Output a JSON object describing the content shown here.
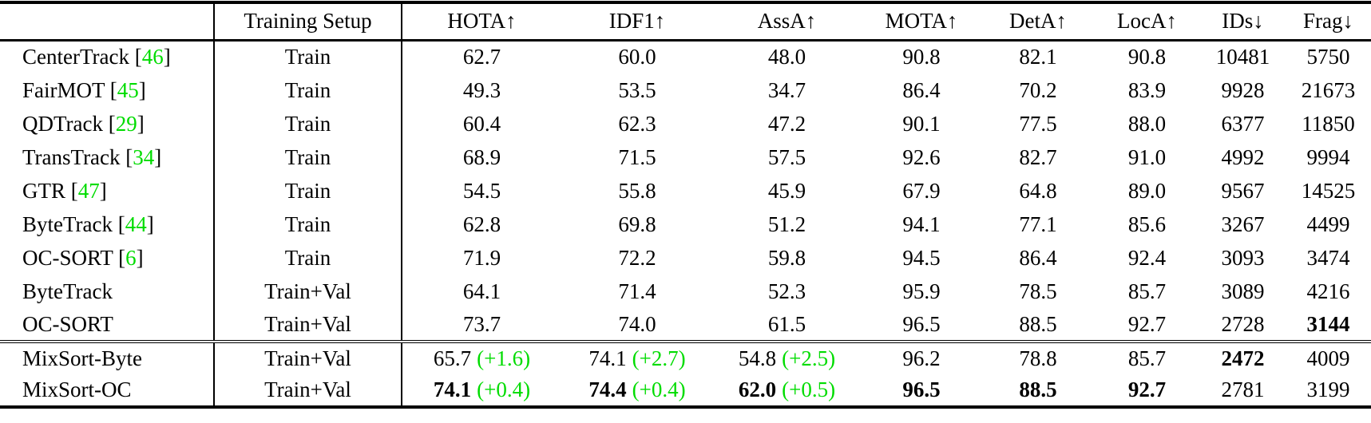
{
  "table": {
    "columns": [
      {
        "id": "method",
        "label": "",
        "arrow": ""
      },
      {
        "id": "setup",
        "label": "Training Setup",
        "arrow": ""
      },
      {
        "id": "hota",
        "label": "HOTA",
        "arrow": "↑"
      },
      {
        "id": "idf1",
        "label": "IDF1",
        "arrow": "↑"
      },
      {
        "id": "assa",
        "label": "AssA",
        "arrow": "↑"
      },
      {
        "id": "mota",
        "label": "MOTA",
        "arrow": "↑"
      },
      {
        "id": "deta",
        "label": "DetA",
        "arrow": "↑"
      },
      {
        "id": "loca",
        "label": "LocA",
        "arrow": "↑"
      },
      {
        "id": "ids",
        "label": "IDs",
        "arrow": "↓"
      },
      {
        "id": "frag",
        "label": "Frag",
        "arrow": "↓"
      }
    ],
    "colors": {
      "citation_green": "#00dc00",
      "delta_green": "#00dc00",
      "text_black": "#000000",
      "background": "#ffffff"
    },
    "sections": [
      {
        "name": "baselines",
        "rows": [
          {
            "method": "CenterTrack",
            "cite": "46",
            "setup": "Train",
            "metrics": [
              {
                "value": "62.7"
              },
              {
                "value": "60.0"
              },
              {
                "value": "48.0"
              },
              {
                "value": "90.8"
              },
              {
                "value": "82.1"
              },
              {
                "value": "90.8"
              },
              {
                "value": "10481"
              },
              {
                "value": "5750"
              }
            ]
          },
          {
            "method": "FairMOT",
            "cite": "45",
            "setup": "Train",
            "metrics": [
              {
                "value": "49.3"
              },
              {
                "value": "53.5"
              },
              {
                "value": "34.7"
              },
              {
                "value": "86.4"
              },
              {
                "value": "70.2"
              },
              {
                "value": "83.9"
              },
              {
                "value": "9928"
              },
              {
                "value": "21673"
              }
            ]
          },
          {
            "method": "QDTrack",
            "cite": "29",
            "setup": "Train",
            "metrics": [
              {
                "value": "60.4"
              },
              {
                "value": "62.3"
              },
              {
                "value": "47.2"
              },
              {
                "value": "90.1"
              },
              {
                "value": "77.5"
              },
              {
                "value": "88.0"
              },
              {
                "value": "6377"
              },
              {
                "value": "11850"
              }
            ]
          },
          {
            "method": "TransTrack",
            "cite": "34",
            "setup": "Train",
            "metrics": [
              {
                "value": "68.9"
              },
              {
                "value": "71.5"
              },
              {
                "value": "57.5"
              },
              {
                "value": "92.6"
              },
              {
                "value": "82.7"
              },
              {
                "value": "91.0"
              },
              {
                "value": "4992"
              },
              {
                "value": "9994"
              }
            ]
          },
          {
            "method": "GTR",
            "cite": "47",
            "setup": "Train",
            "metrics": [
              {
                "value": "54.5"
              },
              {
                "value": "55.8"
              },
              {
                "value": "45.9"
              },
              {
                "value": "67.9"
              },
              {
                "value": "64.8"
              },
              {
                "value": "89.0"
              },
              {
                "value": "9567"
              },
              {
                "value": "14525"
              }
            ]
          },
          {
            "method": "ByteTrack",
            "cite": "44",
            "setup": "Train",
            "metrics": [
              {
                "value": "62.8"
              },
              {
                "value": "69.8"
              },
              {
                "value": "51.2"
              },
              {
                "value": "94.1"
              },
              {
                "value": "77.1"
              },
              {
                "value": "85.6"
              },
              {
                "value": "3267"
              },
              {
                "value": "4499"
              }
            ]
          },
          {
            "method": "OC-SORT",
            "cite": "6",
            "setup": "Train",
            "metrics": [
              {
                "value": "71.9"
              },
              {
                "value": "72.2"
              },
              {
                "value": "59.8"
              },
              {
                "value": "94.5"
              },
              {
                "value": "86.4"
              },
              {
                "value": "92.4"
              },
              {
                "value": "3093"
              },
              {
                "value": "3474"
              }
            ]
          },
          {
            "method": "ByteTrack",
            "cite": "",
            "setup": "Train+Val",
            "metrics": [
              {
                "value": "64.1"
              },
              {
                "value": "71.4"
              },
              {
                "value": "52.3"
              },
              {
                "value": "95.9"
              },
              {
                "value": "78.5"
              },
              {
                "value": "85.7"
              },
              {
                "value": "3089"
              },
              {
                "value": "4216"
              }
            ]
          },
          {
            "method": "OC-SORT",
            "cite": "",
            "setup": "Train+Val",
            "metrics": [
              {
                "value": "73.7"
              },
              {
                "value": "74.0"
              },
              {
                "value": "61.5"
              },
              {
                "value": "96.5"
              },
              {
                "value": "88.5"
              },
              {
                "value": "92.7"
              },
              {
                "value": "2728"
              },
              {
                "value": "3144",
                "bold": true
              }
            ]
          }
        ]
      },
      {
        "name": "mixsort",
        "rows": [
          {
            "method": "MixSort-Byte",
            "cite": "",
            "setup": "Train+Val",
            "metrics": [
              {
                "value": "65.7",
                "delta": "(+1.6)"
              },
              {
                "value": "74.1",
                "delta": "(+2.7)"
              },
              {
                "value": "54.8",
                "delta": "(+2.5)"
              },
              {
                "value": "96.2"
              },
              {
                "value": "78.8"
              },
              {
                "value": "85.7"
              },
              {
                "value": "2472",
                "bold": true
              },
              {
                "value": "4009"
              }
            ]
          },
          {
            "method": "MixSort-OC",
            "cite": "",
            "setup": "Train+Val",
            "metrics": [
              {
                "value": "74.1",
                "bold": true,
                "delta": "(+0.4)"
              },
              {
                "value": "74.4",
                "bold": true,
                "delta": "(+0.4)"
              },
              {
                "value": "62.0",
                "bold": true,
                "delta": "(+0.5)"
              },
              {
                "value": "96.5",
                "bold": true
              },
              {
                "value": "88.5",
                "bold": true
              },
              {
                "value": "92.7",
                "bold": true
              },
              {
                "value": "2781"
              },
              {
                "value": "3199"
              }
            ]
          }
        ]
      }
    ]
  }
}
